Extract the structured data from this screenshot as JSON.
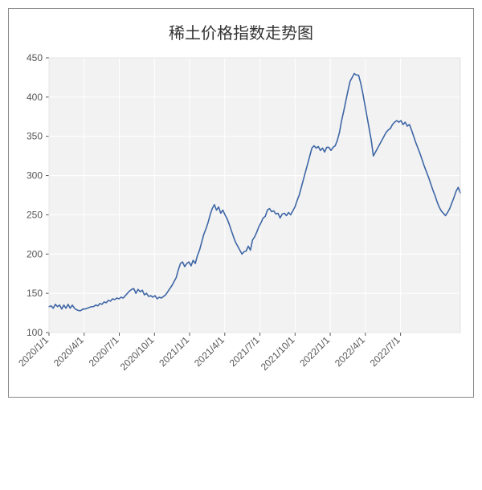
{
  "chart": {
    "type": "line",
    "title": "稀土价格指数走势图",
    "title_fontsize": 20,
    "title_color": "#333333",
    "background_color": "#ffffff",
    "plot_background_color": "#f2f2f2",
    "grid_color": "#ffffff",
    "line_color": "#3e66a6",
    "line_width": 1.6,
    "axis_label_color": "#555555",
    "axis_label_fontsize": 12,
    "border_color": "#888888",
    "ylim": [
      100,
      450
    ],
    "ytick_step": 50,
    "yticks": [
      100,
      150,
      200,
      250,
      300,
      350,
      400,
      450
    ],
    "x_tick_labels": [
      "2020/1/1",
      "2020/4/1",
      "2020/7/1",
      "2020/10/1",
      "2021/1/1",
      "2021/4/1",
      "2021/7/1",
      "2021/10/1",
      "2022/1/1",
      "2022/4/1",
      "2022/7/1"
    ],
    "x_tick_label_rotation_deg": 45,
    "series": {
      "name": "rare_earth_price_index",
      "y": [
        133,
        134,
        131,
        136,
        133,
        135,
        130,
        135,
        131,
        136,
        131,
        135,
        131,
        129,
        128,
        128,
        130,
        130,
        131,
        132,
        133,
        133,
        135,
        134,
        137,
        136,
        139,
        138,
        141,
        140,
        143,
        142,
        144,
        143,
        145,
        144,
        147,
        150,
        153,
        155,
        156,
        150,
        155,
        152,
        154,
        148,
        150,
        146,
        147,
        145,
        147,
        143,
        145,
        144,
        146,
        148,
        152,
        156,
        160,
        165,
        170,
        180,
        188,
        190,
        184,
        188,
        190,
        185,
        192,
        188,
        198,
        205,
        215,
        225,
        232,
        240,
        250,
        258,
        263,
        256,
        260,
        252,
        256,
        250,
        245,
        238,
        230,
        222,
        215,
        210,
        205,
        200,
        203,
        204,
        210,
        205,
        218,
        222,
        228,
        235,
        240,
        246,
        248,
        256,
        258,
        254,
        255,
        251,
        252,
        246,
        251,
        252,
        249,
        253,
        250,
        255,
        260,
        268,
        275,
        285,
        295,
        305,
        315,
        325,
        335,
        338,
        335,
        337,
        332,
        335,
        330,
        336,
        336,
        332,
        336,
        338,
        345,
        355,
        370,
        382,
        395,
        408,
        420,
        425,
        430,
        428,
        428,
        418,
        405,
        390,
        375,
        360,
        345,
        325,
        330,
        335,
        340,
        345,
        350,
        355,
        358,
        360,
        365,
        368,
        370,
        368,
        370,
        365,
        368,
        363,
        365,
        358,
        350,
        342,
        335,
        328,
        320,
        312,
        305,
        298,
        290,
        282,
        275,
        267,
        260,
        255,
        252,
        249,
        253,
        258,
        265,
        272,
        280,
        285,
        278
      ]
    }
  }
}
